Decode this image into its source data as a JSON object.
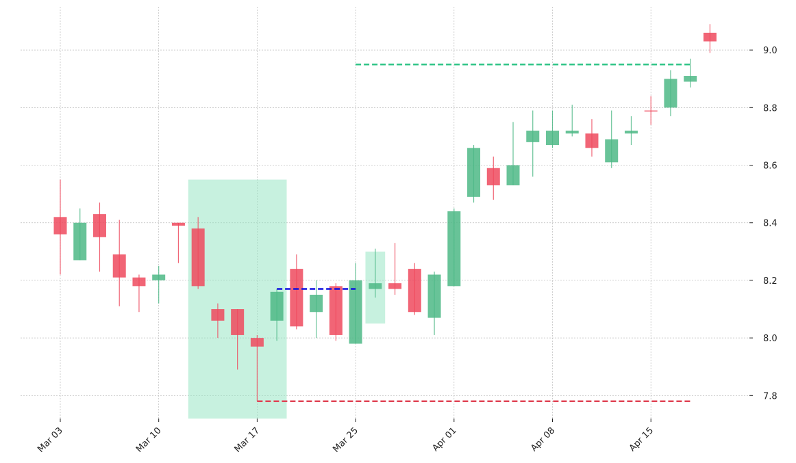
{
  "chart_data": {
    "type": "candlestick",
    "categories": [
      "Mar 03",
      null,
      null,
      null,
      null,
      "Mar 10",
      null,
      null,
      null,
      null,
      "Mar 17",
      null,
      null,
      null,
      null,
      "Mar 25",
      null,
      null,
      null,
      null,
      "Apr 01",
      null,
      null,
      null,
      null,
      "Apr 08",
      null,
      null,
      null,
      null,
      "Apr 15",
      null,
      null,
      null
    ],
    "open": [
      8.42,
      8.27,
      8.43,
      8.29,
      8.21,
      8.2,
      8.4,
      8.38,
      8.1,
      8.1,
      8.0,
      8.06,
      8.24,
      8.09,
      8.18,
      7.98,
      8.17,
      8.19,
      8.24,
      8.07,
      8.18,
      8.49,
      8.59,
      8.53,
      8.68,
      8.67,
      8.71,
      8.71,
      8.61,
      8.71,
      8.79,
      8.8,
      8.89,
      9.06
    ],
    "high": [
      8.55,
      8.45,
      8.47,
      8.41,
      8.22,
      8.25,
      8.4,
      8.42,
      8.12,
      8.1,
      8.01,
      8.17,
      8.29,
      8.2,
      8.19,
      8.26,
      8.31,
      8.33,
      8.26,
      8.23,
      8.45,
      8.67,
      8.63,
      8.75,
      8.79,
      8.79,
      8.81,
      8.76,
      8.79,
      8.77,
      8.84,
      8.93,
      8.97,
      9.09
    ],
    "low": [
      8.22,
      8.27,
      8.23,
      8.11,
      8.09,
      8.12,
      8.26,
      8.17,
      8.0,
      7.89,
      7.78,
      7.99,
      8.03,
      8.0,
      7.99,
      7.98,
      8.14,
      8.15,
      8.08,
      8.01,
      8.18,
      8.47,
      8.48,
      8.53,
      8.56,
      8.66,
      8.7,
      8.63,
      8.59,
      8.67,
      8.74,
      8.77,
      8.87,
      8.99
    ],
    "close": [
      8.36,
      8.4,
      8.35,
      8.21,
      8.18,
      8.22,
      8.39,
      8.18,
      8.06,
      8.01,
      7.97,
      8.16,
      8.04,
      8.15,
      8.01,
      8.2,
      8.19,
      8.17,
      8.09,
      8.22,
      8.44,
      8.66,
      8.53,
      8.6,
      8.72,
      8.72,
      8.72,
      8.66,
      8.69,
      8.72,
      8.79,
      8.9,
      8.91,
      9.03
    ],
    "up_color": "#4db886",
    "down_color": "#ee4a5e",
    "zones": [
      {
        "start": 7,
        "end": 11,
        "low": 7.72,
        "high": 8.55,
        "color": "#8fe3c0"
      },
      {
        "start": 16,
        "end": 16,
        "low": 8.05,
        "high": 8.3,
        "color": "#8fe3c0"
      }
    ],
    "levels": [
      {
        "value": 8.95,
        "start": 15,
        "end": 32,
        "color": "#2ec486"
      },
      {
        "value": 8.17,
        "start": 11,
        "end": 15,
        "color": "#1010e0"
      },
      {
        "value": 7.78,
        "start": 10,
        "end": 32,
        "color": "#e04455"
      }
    ],
    "ylim": [
      7.72,
      9.15
    ],
    "yticks": [
      7.8,
      {
        "value": 8,
        "label": "8.0"
      },
      8.2,
      8.4,
      8.6,
      8.8,
      {
        "value": 9,
        "label": "9.0"
      }
    ],
    "grid": true
  }
}
